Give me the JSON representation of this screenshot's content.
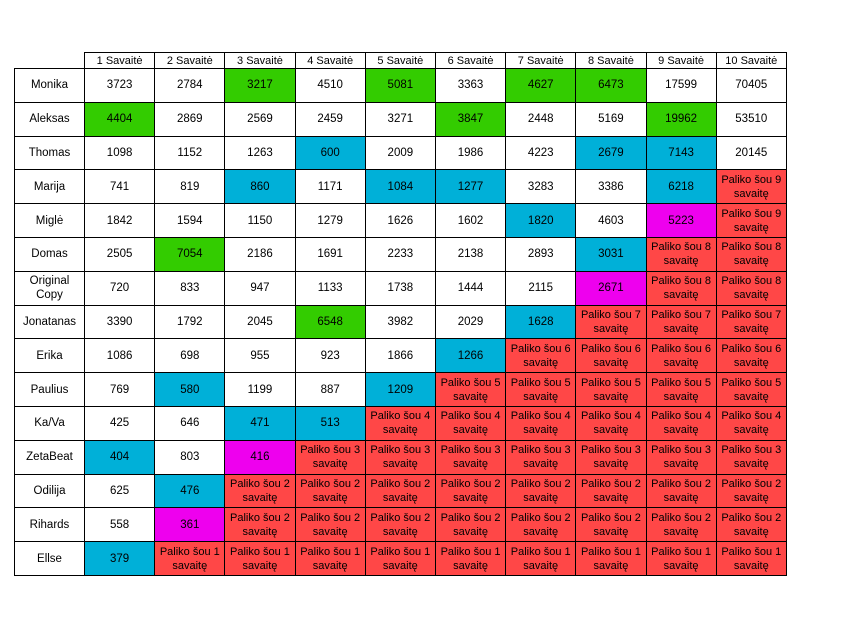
{
  "colors": {
    "green": "#33cc00",
    "blue": "#00b0d8",
    "pink": "#ee00ee",
    "red": "#ff4747"
  },
  "table": {
    "headers": [
      "1 Savaitė",
      "2 Savaitė",
      "3 Savaitė",
      "4 Savaitė",
      "5 Savaitė",
      "6 Savaitė",
      "7 Savaitė",
      "8 Savaitė",
      "9 Savaitė",
      "10 Savaitė"
    ],
    "rows": [
      {
        "name": "Monika",
        "cells": [
          {
            "t": "3723",
            "c": ""
          },
          {
            "t": "2784",
            "c": ""
          },
          {
            "t": "3217",
            "c": "green"
          },
          {
            "t": "4510",
            "c": ""
          },
          {
            "t": "5081",
            "c": "green"
          },
          {
            "t": "3363",
            "c": ""
          },
          {
            "t": "4627",
            "c": "green"
          },
          {
            "t": "6473",
            "c": "green"
          },
          {
            "t": "17599",
            "c": ""
          },
          {
            "t": "70405",
            "c": ""
          }
        ]
      },
      {
        "name": "Aleksas",
        "cells": [
          {
            "t": "4404",
            "c": "green"
          },
          {
            "t": "2869",
            "c": ""
          },
          {
            "t": "2569",
            "c": ""
          },
          {
            "t": "2459",
            "c": ""
          },
          {
            "t": "3271",
            "c": ""
          },
          {
            "t": "3847",
            "c": "green"
          },
          {
            "t": "2448",
            "c": ""
          },
          {
            "t": "5169",
            "c": ""
          },
          {
            "t": "19962",
            "c": "green"
          },
          {
            "t": "53510",
            "c": ""
          }
        ]
      },
      {
        "name": "Thomas",
        "cells": [
          {
            "t": "1098",
            "c": ""
          },
          {
            "t": "1152",
            "c": ""
          },
          {
            "t": "1263",
            "c": ""
          },
          {
            "t": "600",
            "c": "blue"
          },
          {
            "t": "2009",
            "c": ""
          },
          {
            "t": "1986",
            "c": ""
          },
          {
            "t": "4223",
            "c": ""
          },
          {
            "t": "2679",
            "c": "blue"
          },
          {
            "t": "7143",
            "c": "blue"
          },
          {
            "t": "20145",
            "c": ""
          }
        ]
      },
      {
        "name": "Marija",
        "cells": [
          {
            "t": "741",
            "c": ""
          },
          {
            "t": "819",
            "c": ""
          },
          {
            "t": "860",
            "c": "blue"
          },
          {
            "t": "1171",
            "c": ""
          },
          {
            "t": "1084",
            "c": "blue"
          },
          {
            "t": "1277",
            "c": "blue"
          },
          {
            "t": "3283",
            "c": ""
          },
          {
            "t": "3386",
            "c": ""
          },
          {
            "t": "6218",
            "c": "blue"
          },
          {
            "t": "Paliko šou 9|savaitę",
            "c": "red"
          }
        ]
      },
      {
        "name": "Miglė",
        "cells": [
          {
            "t": "1842",
            "c": ""
          },
          {
            "t": "1594",
            "c": ""
          },
          {
            "t": "1150",
            "c": ""
          },
          {
            "t": "1279",
            "c": ""
          },
          {
            "t": "1626",
            "c": ""
          },
          {
            "t": "1602",
            "c": ""
          },
          {
            "t": "1820",
            "c": "blue"
          },
          {
            "t": "4603",
            "c": ""
          },
          {
            "t": "5223",
            "c": "pink"
          },
          {
            "t": "Paliko šou 9|savaitę",
            "c": "red"
          }
        ]
      },
      {
        "name": "Domas",
        "cells": [
          {
            "t": "2505",
            "c": ""
          },
          {
            "t": "7054",
            "c": "green"
          },
          {
            "t": "2186",
            "c": ""
          },
          {
            "t": "1691",
            "c": ""
          },
          {
            "t": "2233",
            "c": ""
          },
          {
            "t": "2138",
            "c": ""
          },
          {
            "t": "2893",
            "c": ""
          },
          {
            "t": "3031",
            "c": "blue"
          },
          {
            "t": "Paliko šou 8|savaitę",
            "c": "red"
          },
          {
            "t": "Paliko šou 8|savaitę",
            "c": "red"
          }
        ]
      },
      {
        "name": "Original Copy",
        "cells": [
          {
            "t": "720",
            "c": ""
          },
          {
            "t": "833",
            "c": ""
          },
          {
            "t": "947",
            "c": ""
          },
          {
            "t": "1133",
            "c": ""
          },
          {
            "t": "1738",
            "c": ""
          },
          {
            "t": "1444",
            "c": ""
          },
          {
            "t": "2115",
            "c": ""
          },
          {
            "t": "2671",
            "c": "pink"
          },
          {
            "t": "Paliko šou 8|savaitę",
            "c": "red"
          },
          {
            "t": "Paliko šou 8|savaitę",
            "c": "red"
          }
        ]
      },
      {
        "name": "Jonatanas",
        "cells": [
          {
            "t": "3390",
            "c": ""
          },
          {
            "t": "1792",
            "c": ""
          },
          {
            "t": "2045",
            "c": ""
          },
          {
            "t": "6548",
            "c": "green"
          },
          {
            "t": "3982",
            "c": ""
          },
          {
            "t": "2029",
            "c": ""
          },
          {
            "t": "1628",
            "c": "blue"
          },
          {
            "t": "Paliko šou 7|savaitę",
            "c": "red"
          },
          {
            "t": "Paliko šou 7|savaitę",
            "c": "red"
          },
          {
            "t": "Paliko šou 7|savaitę",
            "c": "red"
          }
        ]
      },
      {
        "name": "Erika",
        "cells": [
          {
            "t": "1086",
            "c": ""
          },
          {
            "t": "698",
            "c": ""
          },
          {
            "t": "955",
            "c": ""
          },
          {
            "t": "923",
            "c": ""
          },
          {
            "t": "1866",
            "c": ""
          },
          {
            "t": "1266",
            "c": "blue"
          },
          {
            "t": "Paliko šou 6|savaitę",
            "c": "red"
          },
          {
            "t": "Paliko šou 6|savaitę",
            "c": "red"
          },
          {
            "t": "Paliko šou 6|savaitę",
            "c": "red"
          },
          {
            "t": "Paliko šou 6|savaitę",
            "c": "red"
          }
        ]
      },
      {
        "name": "Paulius",
        "cells": [
          {
            "t": "769",
            "c": ""
          },
          {
            "t": "580",
            "c": "blue"
          },
          {
            "t": "1199",
            "c": ""
          },
          {
            "t": "887",
            "c": ""
          },
          {
            "t": "1209",
            "c": "blue"
          },
          {
            "t": "Paliko šou 5|savaitę",
            "c": "red"
          },
          {
            "t": "Paliko šou 5|savaitę",
            "c": "red"
          },
          {
            "t": "Paliko šou 5|savaitę",
            "c": "red"
          },
          {
            "t": "Paliko šou 5|savaitę",
            "c": "red"
          },
          {
            "t": "Paliko šou 5|savaitę",
            "c": "red"
          }
        ]
      },
      {
        "name": "Ka/Va",
        "cells": [
          {
            "t": "425",
            "c": ""
          },
          {
            "t": "646",
            "c": ""
          },
          {
            "t": "471",
            "c": "blue"
          },
          {
            "t": "513",
            "c": "blue"
          },
          {
            "t": "Paliko šou 4|savaitę",
            "c": "red"
          },
          {
            "t": "Paliko šou 4|savaitę",
            "c": "red"
          },
          {
            "t": "Paliko šou 4|savaitę",
            "c": "red"
          },
          {
            "t": "Paliko šou 4|savaitę",
            "c": "red"
          },
          {
            "t": "Paliko šou 4|savaitę",
            "c": "red"
          },
          {
            "t": "Paliko šou 4|savaitę",
            "c": "red"
          }
        ]
      },
      {
        "name": "ZetaBeat",
        "cells": [
          {
            "t": "404",
            "c": "blue"
          },
          {
            "t": "803",
            "c": ""
          },
          {
            "t": "416",
            "c": "pink"
          },
          {
            "t": "Paliko šou 3|savaitę",
            "c": "red"
          },
          {
            "t": "Paliko šou 3|savaitę",
            "c": "red"
          },
          {
            "t": "Paliko šou 3|savaitę",
            "c": "red"
          },
          {
            "t": "Paliko šou 3|savaitę",
            "c": "red"
          },
          {
            "t": "Paliko šou 3|savaitę",
            "c": "red"
          },
          {
            "t": "Paliko šou 3|savaitę",
            "c": "red"
          },
          {
            "t": "Paliko šou 3|savaitę",
            "c": "red"
          }
        ]
      },
      {
        "name": "Odilija",
        "cells": [
          {
            "t": "625",
            "c": ""
          },
          {
            "t": "476",
            "c": "blue"
          },
          {
            "t": "Paliko šou 2|savaitę",
            "c": "red"
          },
          {
            "t": "Paliko šou 2|savaitę",
            "c": "red"
          },
          {
            "t": "Paliko šou 2|savaitę",
            "c": "red"
          },
          {
            "t": "Paliko šou 2|savaitę",
            "c": "red"
          },
          {
            "t": "Paliko šou 2|savaitę",
            "c": "red"
          },
          {
            "t": "Paliko šou 2|savaitę",
            "c": "red"
          },
          {
            "t": "Paliko šou 2|savaitę",
            "c": "red"
          },
          {
            "t": "Paliko šou 2|savaitę",
            "c": "red"
          }
        ]
      },
      {
        "name": "Rihards",
        "cells": [
          {
            "t": "558",
            "c": ""
          },
          {
            "t": "361",
            "c": "pink"
          },
          {
            "t": "Paliko šou 2|savaitę",
            "c": "red"
          },
          {
            "t": "Paliko šou 2|savaitę",
            "c": "red"
          },
          {
            "t": "Paliko šou 2|savaitę",
            "c": "red"
          },
          {
            "t": "Paliko šou 2|savaitę",
            "c": "red"
          },
          {
            "t": "Paliko šou 2|savaitę",
            "c": "red"
          },
          {
            "t": "Paliko šou 2|savaitę",
            "c": "red"
          },
          {
            "t": "Paliko šou 2|savaitę",
            "c": "red"
          },
          {
            "t": "Paliko šou 2|savaitę",
            "c": "red"
          }
        ]
      },
      {
        "name": "Ellse",
        "cells": [
          {
            "t": "379",
            "c": "blue"
          },
          {
            "t": "Paliko šou 1|savaitę",
            "c": "red"
          },
          {
            "t": "Paliko šou 1|savaitę",
            "c": "red"
          },
          {
            "t": "Paliko šou 1|savaitę",
            "c": "red"
          },
          {
            "t": "Paliko šou 1|savaitę",
            "c": "red"
          },
          {
            "t": "Paliko šou 1|savaitę",
            "c": "red"
          },
          {
            "t": "Paliko šou 1|savaitę",
            "c": "red"
          },
          {
            "t": "Paliko šou 1|savaitę",
            "c": "red"
          },
          {
            "t": "Paliko šou 1|savaitę",
            "c": "red"
          },
          {
            "t": "Paliko šou 1|savaitę",
            "c": "red"
          }
        ]
      }
    ]
  }
}
